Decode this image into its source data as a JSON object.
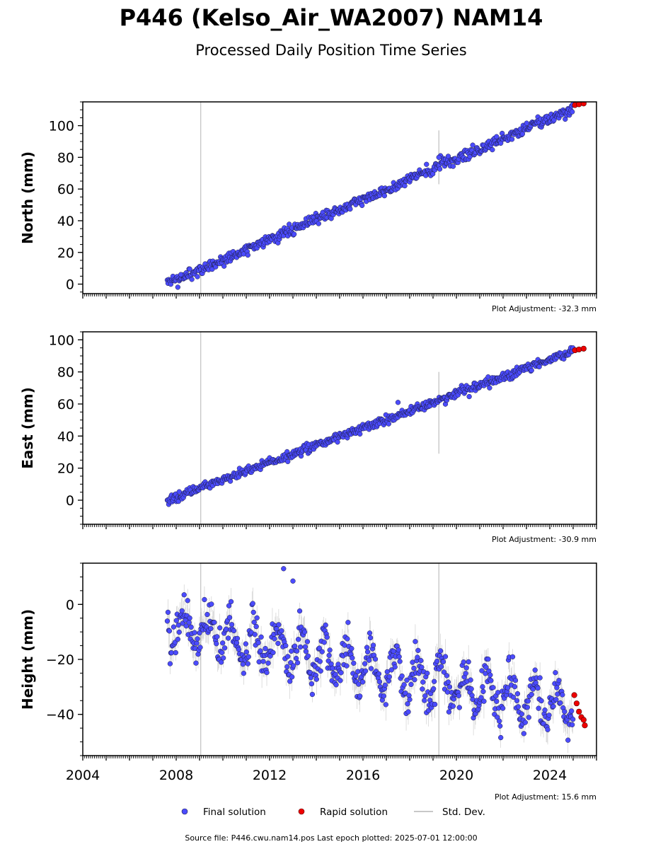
{
  "title": "P446 (Kelso_Air_WA2007) NAM14",
  "subtitle": "Processed Daily Position Time Series",
  "footer": "Source file: P446.cwu.nam14.pos  Last epoch plotted: 2025-07-01 12:00:00",
  "legend": {
    "final": "Final solution",
    "rapid": "Rapid solution",
    "std": "Std. Dev."
  },
  "colors": {
    "final": "#4b4bff",
    "rapid": "#ee0000",
    "std": "#c8c8c8",
    "axis": "#000000"
  },
  "chart_data": [
    {
      "type": "scatter",
      "panel": "north",
      "ylabel": "North (mm)",
      "adjustment": "Plot Adjustment: -32.3 mm",
      "xlim": [
        2004.0,
        2026.0
      ],
      "ylim": [
        -6,
        115
      ],
      "yticks": [
        0,
        20,
        40,
        60,
        80,
        100
      ],
      "x_start": 2007.62,
      "x_end": 2025.0,
      "trend": [
        [
          2007.62,
          0.0
        ],
        [
          2025.0,
          111.0
        ]
      ],
      "final_noise_sd": 1.8,
      "rapid": {
        "x": [
          2025.08,
          2025.25,
          2025.45
        ],
        "y": [
          113.0,
          113.5,
          114.0
        ]
      },
      "outliers": [
        [
          2019.25,
          80.0
        ],
        [
          2008.2,
          6.0
        ]
      ],
      "errorbar_events": [
        [
          2009.05,
          -6,
          115
        ],
        [
          2019.25,
          63,
          97
        ]
      ]
    },
    {
      "type": "scatter",
      "panel": "east",
      "ylabel": "East (mm)",
      "adjustment": "Plot Adjustment: -30.9 mm",
      "xlim": [
        2004.0,
        2026.0
      ],
      "ylim": [
        -15,
        105
      ],
      "yticks": [
        0,
        20,
        40,
        60,
        80,
        100
      ],
      "x_start": 2007.62,
      "x_end": 2025.0,
      "trend": [
        [
          2007.62,
          0.0
        ],
        [
          2025.0,
          93.0
        ]
      ],
      "final_noise_sd": 1.4,
      "rapid": {
        "x": [
          2025.08,
          2025.25,
          2025.45
        ],
        "y": [
          93.5,
          94.0,
          94.5
        ]
      },
      "outliers": [
        [
          2017.5,
          61.0
        ]
      ],
      "errorbar_events": [
        [
          2009.05,
          -15,
          105
        ],
        [
          2019.25,
          29,
          80
        ]
      ]
    },
    {
      "type": "scatter",
      "panel": "height",
      "ylabel": "Height (mm)",
      "adjustment": "Plot Adjustment: 15.6 mm",
      "xlim": [
        2004.0,
        2026.0
      ],
      "ylim": [
        -55,
        15
      ],
      "yticks": [
        -40,
        -20,
        0
      ],
      "xticks": [
        2004,
        2008,
        2012,
        2016,
        2020,
        2024
      ],
      "x_start": 2007.62,
      "x_end": 2025.0,
      "trend": [
        [
          2007.62,
          -8.0
        ],
        [
          2025.0,
          -38.0
        ]
      ],
      "seasonal_amplitude": 7.0,
      "final_noise_sd": 3.5,
      "rapid": {
        "x": [
          2025.05,
          2025.15,
          2025.25,
          2025.35,
          2025.45,
          2025.5
        ],
        "y": [
          -33,
          -36,
          -39,
          -41,
          -42,
          -44
        ]
      },
      "outliers": [
        [
          2012.6,
          13.0
        ],
        [
          2013.0,
          8.5
        ]
      ],
      "errorbar_events": [
        [
          2009.05,
          -55,
          15
        ],
        [
          2019.25,
          -55,
          15
        ]
      ]
    }
  ]
}
